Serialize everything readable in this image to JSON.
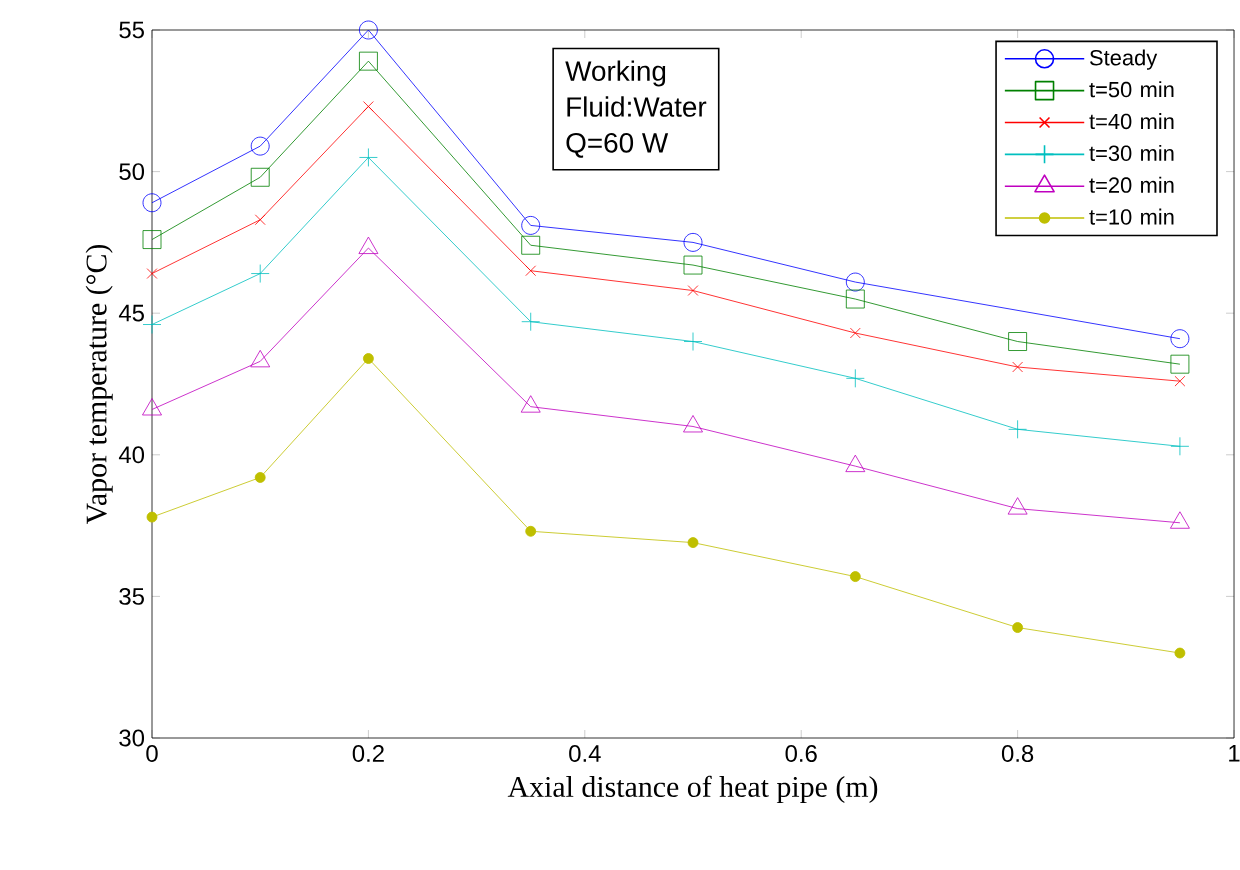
{
  "chart_data": {
    "type": "line",
    "xlabel": "Axial distance of heat pipe (m)",
    "ylabel": "Vapor temperature (°C)",
    "annotations": [
      "Working",
      "Fluid:Water",
      "Q=60 W"
    ],
    "x": [
      0,
      0.1,
      0.2,
      0.35,
      0.5,
      0.65,
      0.8,
      0.95
    ],
    "series": [
      {
        "name": "Steady",
        "color": "#0000ff",
        "marker": "circle",
        "values": [
          48.9,
          50.9,
          55.0,
          48.1,
          47.5,
          46.1,
          null,
          44.1
        ]
      },
      {
        "name": "t=50 min",
        "color": "#008000",
        "marker": "square",
        "values": [
          47.6,
          49.8,
          53.9,
          47.4,
          46.7,
          45.5,
          44.0,
          43.2
        ]
      },
      {
        "name": "t=40 min",
        "color": "#ff0000",
        "marker": "cross",
        "values": [
          46.4,
          48.3,
          52.3,
          46.5,
          45.8,
          44.3,
          43.1,
          42.6
        ]
      },
      {
        "name": "t=30 min",
        "color": "#00bfbf",
        "marker": "plus",
        "values": [
          44.6,
          46.4,
          50.5,
          44.7,
          44.0,
          42.7,
          40.9,
          40.3
        ]
      },
      {
        "name": "t=20 min",
        "color": "#bf00bf",
        "marker": "triangle",
        "values": [
          41.6,
          43.3,
          47.3,
          41.7,
          41.0,
          39.6,
          38.1,
          37.6
        ]
      },
      {
        "name": "t=10 min",
        "color": "#bfbf00",
        "marker": "dot",
        "values": [
          37.8,
          39.2,
          43.4,
          37.3,
          36.9,
          35.7,
          33.9,
          33.0
        ]
      }
    ],
    "xlim": [
      0,
      1
    ],
    "xticks": [
      0,
      0.2,
      0.4,
      0.6,
      0.8,
      1
    ],
    "ylim": [
      30,
      55
    ],
    "yticks": [
      30,
      35,
      40,
      45,
      50,
      55
    ],
    "grid": false,
    "legend": "top right"
  }
}
